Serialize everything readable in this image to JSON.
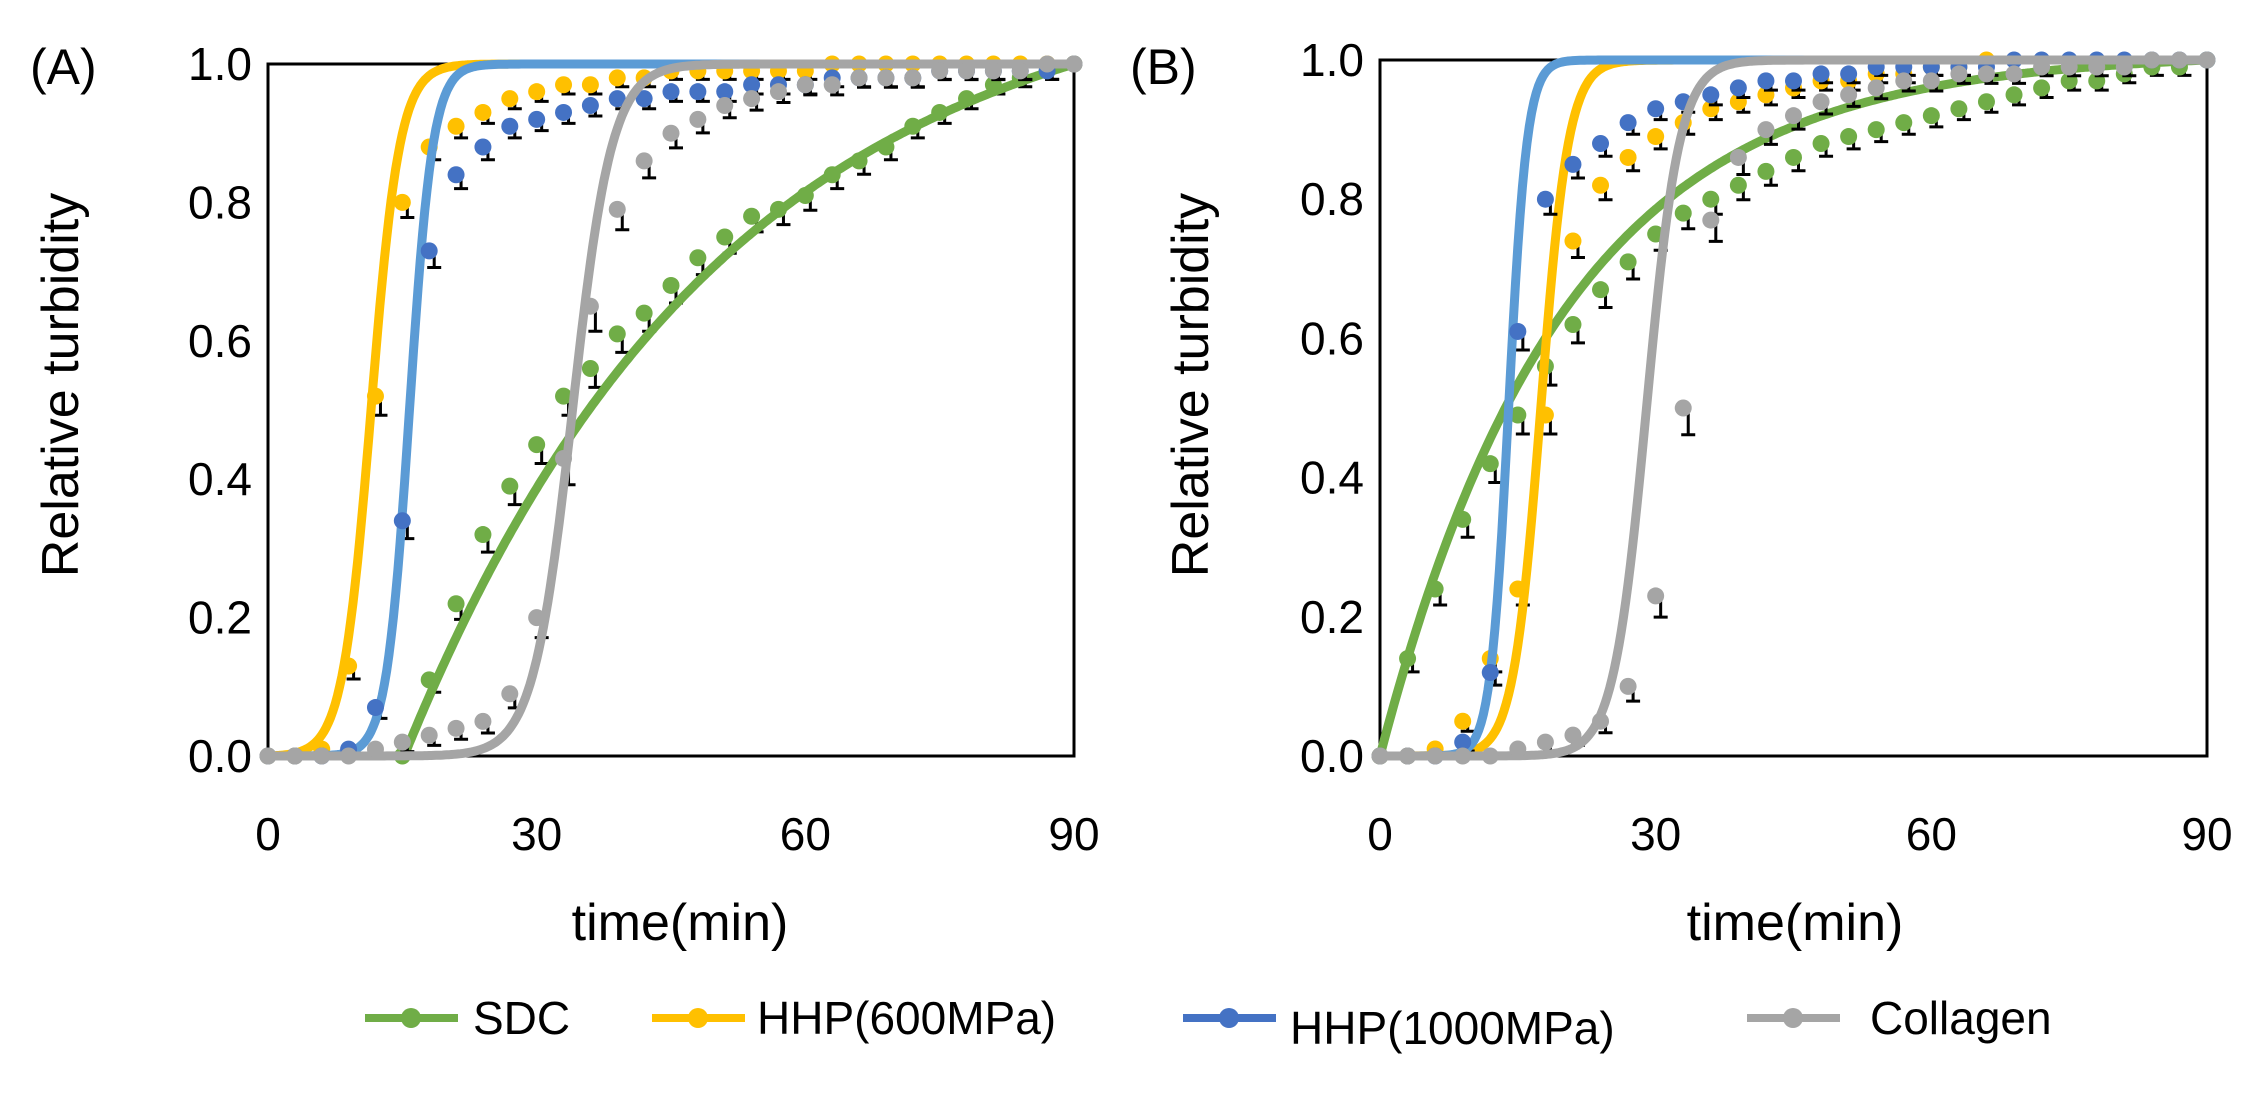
{
  "colors": {
    "SDC": "#70ad47",
    "HHP600": "#ffc000",
    "HHP1000_points": "#4472c4",
    "HHP1000_curve_A": "#5b9bd5",
    "Collagen_points": "#a5a5a5",
    "Collagen_curve": "#a5a5a5",
    "errorbar": "#000000"
  },
  "legend": [
    {
      "key": "SDC",
      "label": "SDC"
    },
    {
      "key": "HHP600",
      "label": "HHP(600MPa)"
    },
    {
      "key": "HHP1000",
      "label": "HHP(1000MPa)"
    },
    {
      "key": "Collagen",
      "label": "Collagen"
    }
  ],
  "chart_data": [
    {
      "type": "line",
      "panel_label": "(A)",
      "xlabel": "time(min)",
      "ylabel": "Relative turbidity",
      "xlim": [
        0,
        90
      ],
      "ylim": [
        0,
        1.0
      ],
      "xticks": [
        "0",
        "30",
        "60",
        "90"
      ],
      "yticks": [
        "0.0",
        "0.2",
        "0.4",
        "0.6",
        "0.8",
        "1.0"
      ],
      "series": [
        {
          "name": "SDC",
          "key": "SDC",
          "model": {
            "t0": 15.2,
            "k": 0.028,
            "shape": "saturating"
          },
          "x": [
            15,
            18,
            21,
            24,
            27,
            30,
            33,
            36,
            39,
            42,
            45,
            48,
            51,
            54,
            57,
            60,
            63,
            66,
            69,
            72,
            75,
            78,
            81,
            84,
            87,
            90
          ],
          "y": [
            0.0,
            0.11,
            0.22,
            0.32,
            0.39,
            0.45,
            0.52,
            0.56,
            0.61,
            0.64,
            0.68,
            0.72,
            0.75,
            0.78,
            0.79,
            0.81,
            0.84,
            0.86,
            0.88,
            0.91,
            0.93,
            0.95,
            0.97,
            0.98,
            0.99,
            1.0
          ]
        },
        {
          "name": "HHP(600MPa)",
          "key": "HHP600",
          "model": {
            "mid": 11.5,
            "width": 1.6
          },
          "x": [
            0,
            3,
            6,
            9,
            12,
            15,
            18,
            21,
            24,
            27,
            30,
            33,
            36,
            39,
            42,
            45,
            48,
            51,
            54,
            57,
            60,
            63,
            66,
            69,
            72,
            75,
            78,
            81,
            84,
            87,
            90
          ],
          "y": [
            0.0,
            0.0,
            0.01,
            0.13,
            0.52,
            0.8,
            0.88,
            0.91,
            0.93,
            0.95,
            0.96,
            0.97,
            0.97,
            0.98,
            0.98,
            0.99,
            0.99,
            0.99,
            0.99,
            0.99,
            0.99,
            1.0,
            1.0,
            1.0,
            1.0,
            1.0,
            1.0,
            1.0,
            1.0,
            1.0,
            1.0
          ]
        },
        {
          "name": "HHP(1000MPa)",
          "key": "HHP1000",
          "model": {
            "mid": 15.8,
            "width": 1.3
          },
          "x": [
            0,
            3,
            6,
            9,
            12,
            15,
            18,
            21,
            24,
            27,
            30,
            33,
            36,
            39,
            42,
            45,
            48,
            51,
            54,
            57,
            60,
            63,
            66,
            69,
            72,
            75,
            78,
            81,
            84,
            87,
            90
          ],
          "y": [
            0.0,
            0.0,
            0.0,
            0.01,
            0.07,
            0.34,
            0.73,
            0.84,
            0.88,
            0.91,
            0.92,
            0.93,
            0.94,
            0.95,
            0.95,
            0.96,
            0.96,
            0.96,
            0.97,
            0.97,
            0.97,
            0.98,
            0.98,
            0.98,
            0.98,
            0.99,
            0.99,
            0.99,
            0.99,
            0.99,
            1.0
          ]
        },
        {
          "name": "Collagen",
          "key": "Collagen",
          "model": {
            "mid": 34.0,
            "width": 2.2
          },
          "x": [
            0,
            3,
            6,
            9,
            12,
            15,
            18,
            21,
            24,
            27,
            30,
            33,
            36,
            39,
            42,
            45,
            48,
            51,
            54,
            57,
            60,
            63,
            66,
            69,
            72,
            75,
            78,
            81,
            84,
            87,
            90
          ],
          "y": [
            0.0,
            0.0,
            0.0,
            0.0,
            0.01,
            0.02,
            0.03,
            0.04,
            0.05,
            0.09,
            0.2,
            0.43,
            0.65,
            0.79,
            0.86,
            0.9,
            0.92,
            0.94,
            0.95,
            0.96,
            0.97,
            0.97,
            0.98,
            0.98,
            0.98,
            0.99,
            0.99,
            0.99,
            0.99,
            1.0,
            1.0
          ]
        }
      ]
    },
    {
      "type": "line",
      "panel_label": "(B)",
      "xlabel": "time(min)",
      "ylabel": "Relative turbidity",
      "xlim": [
        0,
        90
      ],
      "ylim": [
        0,
        1.0
      ],
      "xticks": [
        "0",
        "30",
        "60",
        "90"
      ],
      "yticks": [
        "0.0",
        "0.2",
        "0.4",
        "0.6",
        "0.8",
        "1.0"
      ],
      "series": [
        {
          "name": "SDC",
          "key": "SDC",
          "model": {
            "t0": 0.0,
            "k": 0.05,
            "shape": "saturating"
          },
          "x": [
            0,
            3,
            6,
            9,
            12,
            15,
            18,
            21,
            24,
            27,
            30,
            33,
            36,
            39,
            42,
            45,
            48,
            51,
            54,
            57,
            60,
            63,
            66,
            69,
            72,
            75,
            78,
            81,
            84,
            87,
            90
          ],
          "y": [
            0.0,
            0.14,
            0.24,
            0.34,
            0.42,
            0.49,
            0.56,
            0.62,
            0.67,
            0.71,
            0.75,
            0.78,
            0.8,
            0.82,
            0.84,
            0.86,
            0.88,
            0.89,
            0.9,
            0.91,
            0.92,
            0.93,
            0.94,
            0.95,
            0.96,
            0.97,
            0.97,
            0.98,
            0.99,
            0.99,
            1.0
          ]
        },
        {
          "name": "HHP(600MPa)",
          "key": "HHP600",
          "model": {
            "mid": 17.5,
            "width": 1.5
          },
          "x": [
            0,
            3,
            6,
            9,
            12,
            15,
            18,
            21,
            24,
            27,
            30,
            33,
            36,
            39,
            42,
            45,
            48,
            51,
            54,
            57,
            60,
            63,
            66
          ],
          "y": [
            0.0,
            0.0,
            0.01,
            0.05,
            0.14,
            0.24,
            0.49,
            0.74,
            0.82,
            0.86,
            0.89,
            0.91,
            0.93,
            0.94,
            0.95,
            0.96,
            0.97,
            0.97,
            0.98,
            0.98,
            0.99,
            0.99,
            1.0
          ]
        },
        {
          "name": "HHP(1000MPa)",
          "key": "HHP1000",
          "model": {
            "mid": 14.0,
            "width": 1.0
          },
          "x": [
            0,
            3,
            6,
            9,
            12,
            15,
            18,
            21,
            24,
            27,
            30,
            33,
            36,
            39,
            42,
            45,
            48,
            51,
            54,
            57,
            60,
            63,
            66,
            69,
            72,
            75,
            78,
            81,
            84,
            87,
            90
          ],
          "y": [
            0.0,
            0.0,
            0.0,
            0.02,
            0.12,
            0.61,
            0.8,
            0.85,
            0.88,
            0.91,
            0.93,
            0.94,
            0.95,
            0.96,
            0.97,
            0.97,
            0.98,
            0.98,
            0.99,
            0.99,
            0.99,
            0.99,
            0.99,
            1.0,
            1.0,
            1.0,
            1.0,
            1.0,
            1.0,
            1.0,
            1.0
          ]
        },
        {
          "name": "Collagen",
          "key": "Collagen",
          "model": {
            "mid": 29.0,
            "width": 1.8
          },
          "x": [
            0,
            3,
            6,
            9,
            12,
            15,
            18,
            21,
            24,
            27,
            30,
            33,
            36,
            39,
            42,
            45,
            48,
            51,
            54,
            57,
            60,
            63,
            66,
            69,
            72,
            75,
            78,
            81,
            84,
            87,
            90
          ],
          "y": [
            0.0,
            0.0,
            0.0,
            0.0,
            0.0,
            0.01,
            0.02,
            0.03,
            0.05,
            0.1,
            0.23,
            0.5,
            0.77,
            0.86,
            0.9,
            0.92,
            0.94,
            0.95,
            0.96,
            0.97,
            0.97,
            0.98,
            0.98,
            0.98,
            0.99,
            0.99,
            0.99,
            0.99,
            1.0,
            1.0,
            1.0
          ]
        }
      ]
    }
  ]
}
